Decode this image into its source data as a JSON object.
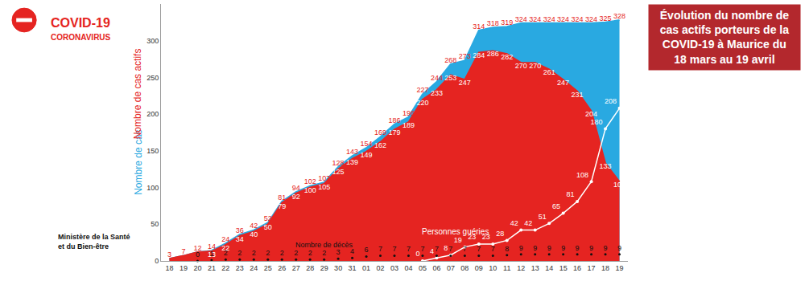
{
  "chart_data": {
    "type": "area",
    "title": [
      "Évolution du nombre de",
      "cas actifs porteurs de la",
      "COVID-19 à Maurice du",
      "18 mars au 19 avril"
    ],
    "header": [
      "COVID-19",
      "CORONAVIRUS"
    ],
    "source": [
      "Ministère de la Santé",
      "et du Bien-être"
    ],
    "categories": [
      "18",
      "19",
      "20",
      "21",
      "22",
      "23",
      "24",
      "25",
      "26",
      "27",
      "28",
      "29",
      "30",
      "31",
      "01",
      "02",
      "03",
      "04",
      "05",
      "06",
      "07",
      "08",
      "09",
      "10",
      "11",
      "12",
      "13",
      "14",
      "15",
      "16",
      "17",
      "18",
      "19"
    ],
    "series": [
      {
        "name": "Nombre de cas",
        "type": "area",
        "color": "#29a9e1",
        "line_style": "solid",
        "values": [
          3,
          7,
          12,
          14,
          24,
          36,
          42,
          52,
          81,
          94,
          102,
          107,
          128,
          143,
          154,
          169,
          186,
          196,
          227,
          244,
          268,
          273,
          314,
          318,
          319,
          324,
          324,
          324,
          324,
          324,
          324,
          325,
          328
        ]
      },
      {
        "name": "Nombre de cas actifs",
        "type": "area",
        "color": "#e52421",
        "line_style": "solid",
        "values": [
          3,
          7,
          12,
          13,
          22,
          34,
          40,
          50,
          79,
          92,
          100,
          105,
          125,
          139,
          149,
          162,
          179,
          189,
          220,
          233,
          253,
          247,
          284,
          286,
          282,
          270,
          270,
          261,
          247,
          231,
          204,
          133,
          108
        ]
      },
      {
        "name": "Personnes guéries",
        "type": "line",
        "color": "#ffffff",
        "marker": "circle",
        "line_style": "solid",
        "values": [
          null,
          null,
          null,
          null,
          null,
          null,
          null,
          null,
          null,
          null,
          null,
          null,
          null,
          null,
          null,
          null,
          null,
          null,
          0,
          4,
          8,
          19,
          23,
          23,
          28,
          42,
          42,
          51,
          65,
          81,
          108,
          180,
          208
        ]
      },
      {
        "name": "Nombre de décès",
        "type": "scatter",
        "color": "#111111",
        "marker": "circle",
        "values": [
          null,
          null,
          0,
          1,
          2,
          2,
          2,
          2,
          2,
          2,
          2,
          2,
          3,
          4,
          6,
          7,
          7,
          7,
          7,
          7,
          7,
          7,
          7,
          7,
          8,
          9,
          9,
          9,
          9,
          9,
          9,
          9,
          9
        ]
      }
    ],
    "ylim": [
      0,
      350
    ],
    "yticks": [
      0,
      50,
      100,
      150,
      200,
      250,
      300
    ],
    "grid": false,
    "data_labels": true
  }
}
